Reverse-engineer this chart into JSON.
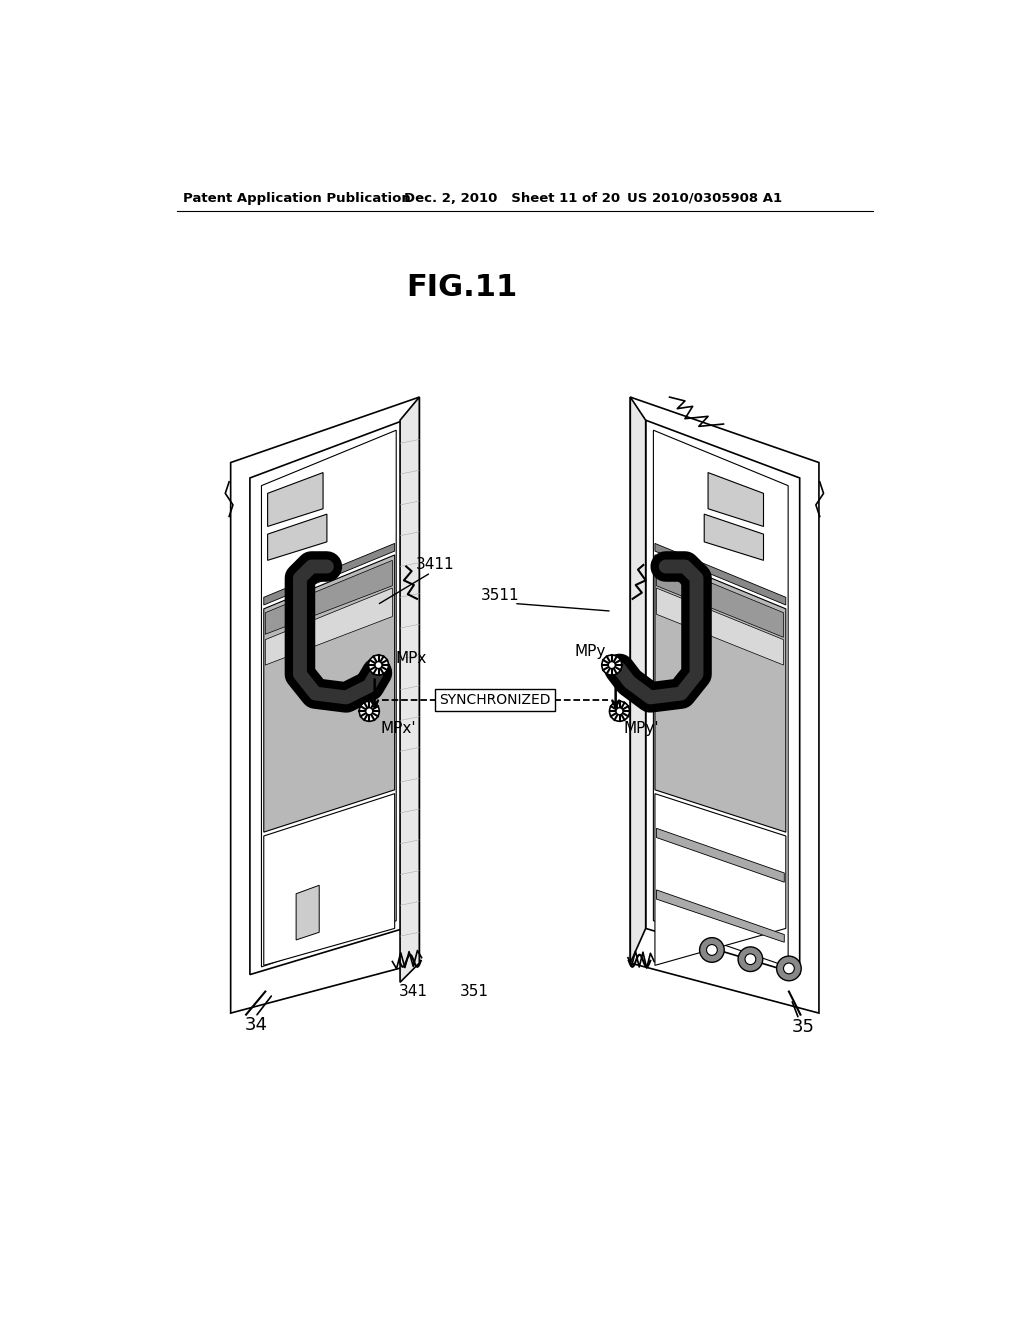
{
  "title": "FIG.11",
  "header_left": "Patent Application Publication",
  "header_mid": "Dec. 2, 2010   Sheet 11 of 20",
  "header_right": "US 2010/0305908 A1",
  "bg_color": "#ffffff",
  "label_34": "34",
  "label_35": "35",
  "label_341": "341",
  "label_351": "351",
  "label_3411": "3411",
  "label_3511": "3511",
  "label_MPx": "MPx",
  "label_MPy": "MPy",
  "label_MPxp": "MPx'",
  "label_MPyp": "MPy'",
  "label_SYNCHRONIZED": "SYNCHRONIZED"
}
